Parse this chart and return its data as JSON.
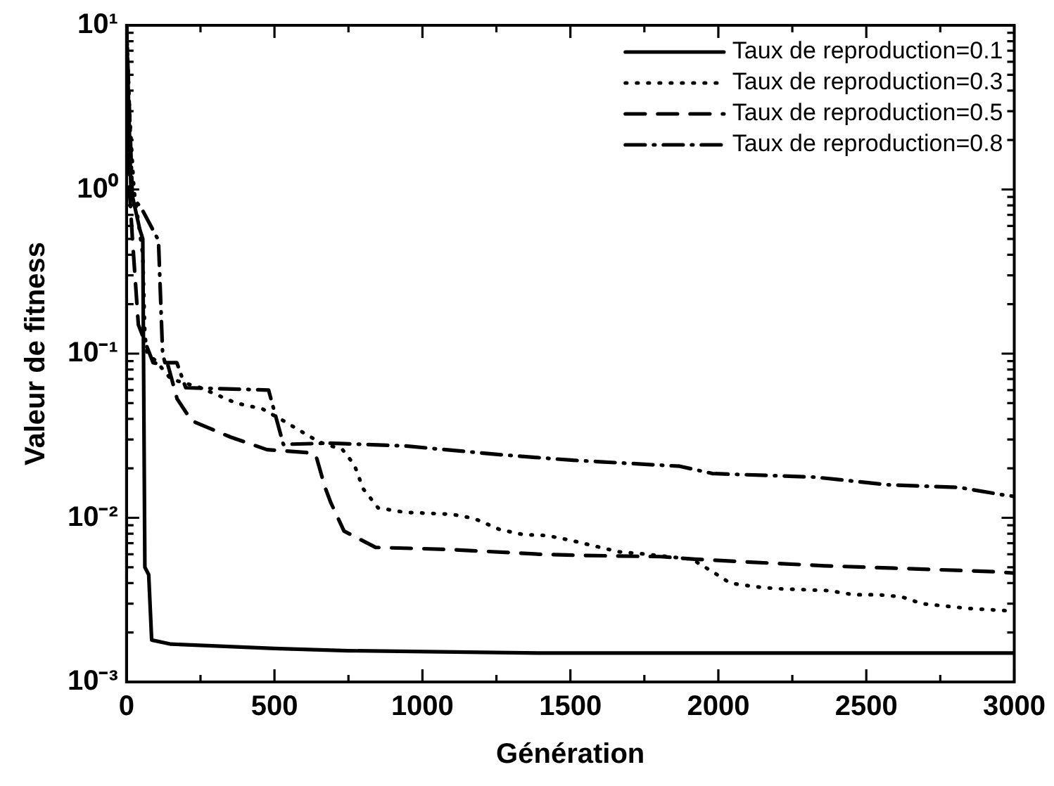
{
  "chart_data": {
    "type": "line",
    "xlabel": "Génération",
    "ylabel": "Valeur de fitness",
    "log": "y",
    "grid": false,
    "legend": "top right",
    "marker": "none",
    "xlim": [
      0,
      3000
    ],
    "xticks": [
      0,
      {
        "value": 250,
        "label": null
      },
      500,
      {
        "value": 750,
        "label": null
      },
      1000,
      {
        "value": 1250,
        "label": null
      },
      1500,
      {
        "value": 1750,
        "label": null
      },
      2000,
      {
        "value": 2250,
        "label": null
      },
      2500,
      {
        "value": 2750,
        "label": null
      },
      3000
    ],
    "ylim": [
      0.001,
      10
    ],
    "yticks": [
      {
        "value": 0.001,
        "label": "10⁻³"
      },
      {
        "value": 0.002,
        "label": null
      },
      {
        "value": 0.003,
        "label": null
      },
      {
        "value": 0.004,
        "label": null
      },
      {
        "value": 0.005,
        "label": null
      },
      {
        "value": 0.006,
        "label": null
      },
      {
        "value": 0.007,
        "label": null
      },
      {
        "value": 0.008,
        "label": null
      },
      {
        "value": 0.009,
        "label": null
      },
      {
        "value": 0.01,
        "label": "10⁻²"
      },
      {
        "value": 0.02,
        "label": null
      },
      {
        "value": 0.03,
        "label": null
      },
      {
        "value": 0.04,
        "label": null
      },
      {
        "value": 0.05,
        "label": null
      },
      {
        "value": 0.06,
        "label": null
      },
      {
        "value": 0.07,
        "label": null
      },
      {
        "value": 0.08,
        "label": null
      },
      {
        "value": 0.09,
        "label": null
      },
      {
        "value": 0.1,
        "label": "10⁻¹"
      },
      {
        "value": 0.2,
        "label": null
      },
      {
        "value": 0.3,
        "label": null
      },
      {
        "value": 0.4,
        "label": null
      },
      {
        "value": 0.5,
        "label": null
      },
      {
        "value": 0.6,
        "label": null
      },
      {
        "value": 0.7,
        "label": null
      },
      {
        "value": 0.8,
        "label": null
      },
      {
        "value": 0.9,
        "label": null
      },
      {
        "value": 1,
        "label": "10⁰"
      },
      {
        "value": 2,
        "label": null
      },
      {
        "value": 3,
        "label": null
      },
      {
        "value": 4,
        "label": null
      },
      {
        "value": 5,
        "label": null
      },
      {
        "value": 6,
        "label": null
      },
      {
        "value": 7,
        "label": null
      },
      {
        "value": 8,
        "label": null
      },
      {
        "value": 9,
        "label": null
      },
      {
        "value": 10,
        "label": "10¹"
      }
    ],
    "series": [
      {
        "name": "Taux de reproduction=0.1",
        "color": "#000000",
        "line_style": "solid",
        "x": [
          0,
          15,
          45,
          55,
          62,
          75,
          85,
          150,
          500,
          750,
          1400,
          3000
        ],
        "values": [
          10,
          1,
          0.57,
          0.5,
          0.005,
          0.0045,
          0.0018,
          0.0017,
          0.0016,
          0.00155,
          0.0015,
          0.0015
        ]
      },
      {
        "name": "Taux de reproduction=0.3",
        "color": "#000000",
        "line_style": "dotted",
        "x": [
          0,
          10,
          25,
          55,
          62,
          70,
          100,
          150,
          250,
          370,
          460,
          530,
          650,
          730,
          770,
          800,
          850,
          940,
          1100,
          1175,
          1260,
          1340,
          1420,
          1500,
          1586,
          1665,
          1757,
          1830,
          1910,
          1980,
          2040,
          2125,
          2200,
          2374,
          2457,
          2540,
          2620,
          2687,
          2765,
          2850,
          3000
        ],
        "values": [
          10,
          3,
          1,
          0.4,
          0.13,
          0.1,
          0.09,
          0.07,
          0.062,
          0.05,
          0.046,
          0.039,
          0.029,
          0.026,
          0.021,
          0.015,
          0.0115,
          0.0108,
          0.0105,
          0.0099,
          0.0085,
          0.0079,
          0.0078,
          0.0073,
          0.0067,
          0.0062,
          0.006,
          0.0058,
          0.0056,
          0.0047,
          0.004,
          0.0038,
          0.0037,
          0.0036,
          0.0034,
          0.0034,
          0.0033,
          0.003,
          0.0029,
          0.0028,
          0.0027
        ]
      },
      {
        "name": "Taux de reproduction=0.5",
        "color": "#000000",
        "line_style": "dashed",
        "x": [
          0,
          10,
          20,
          40,
          90,
          140,
          171,
          220,
          352,
          475,
          607,
          640,
          670,
          690,
          710,
          735,
          842,
          980,
          1100,
          1395,
          1540,
          1805,
          1920,
          2080,
          2360,
          2640,
          2930,
          3000
        ],
        "values": [
          10,
          1,
          0.5,
          0.15,
          0.088,
          0.085,
          0.053,
          0.039,
          0.031,
          0.026,
          0.025,
          0.024,
          0.0155,
          0.0124,
          0.0104,
          0.0083,
          0.0066,
          0.0065,
          0.0064,
          0.006,
          0.0059,
          0.0058,
          0.0056,
          0.0054,
          0.0051,
          0.0049,
          0.0047,
          0.0046
        ]
      },
      {
        "name": "Taux de reproduction=0.8",
        "color": "#000000",
        "line_style": "dashdot",
        "x": [
          0,
          20,
          50,
          108,
          122,
          130,
          170,
          200,
          480,
          530,
          690,
          940,
          1267,
          1510,
          1590,
          1870,
          1980,
          2325,
          2570,
          2815,
          2960,
          3000
        ],
        "values": [
          10,
          0.9,
          0.77,
          0.49,
          0.1,
          0.088,
          0.088,
          0.062,
          0.06,
          0.028,
          0.0285,
          0.0274,
          0.0242,
          0.0224,
          0.022,
          0.0206,
          0.0186,
          0.0177,
          0.0159,
          0.0153,
          0.0138,
          0.0135
        ]
      }
    ]
  }
}
